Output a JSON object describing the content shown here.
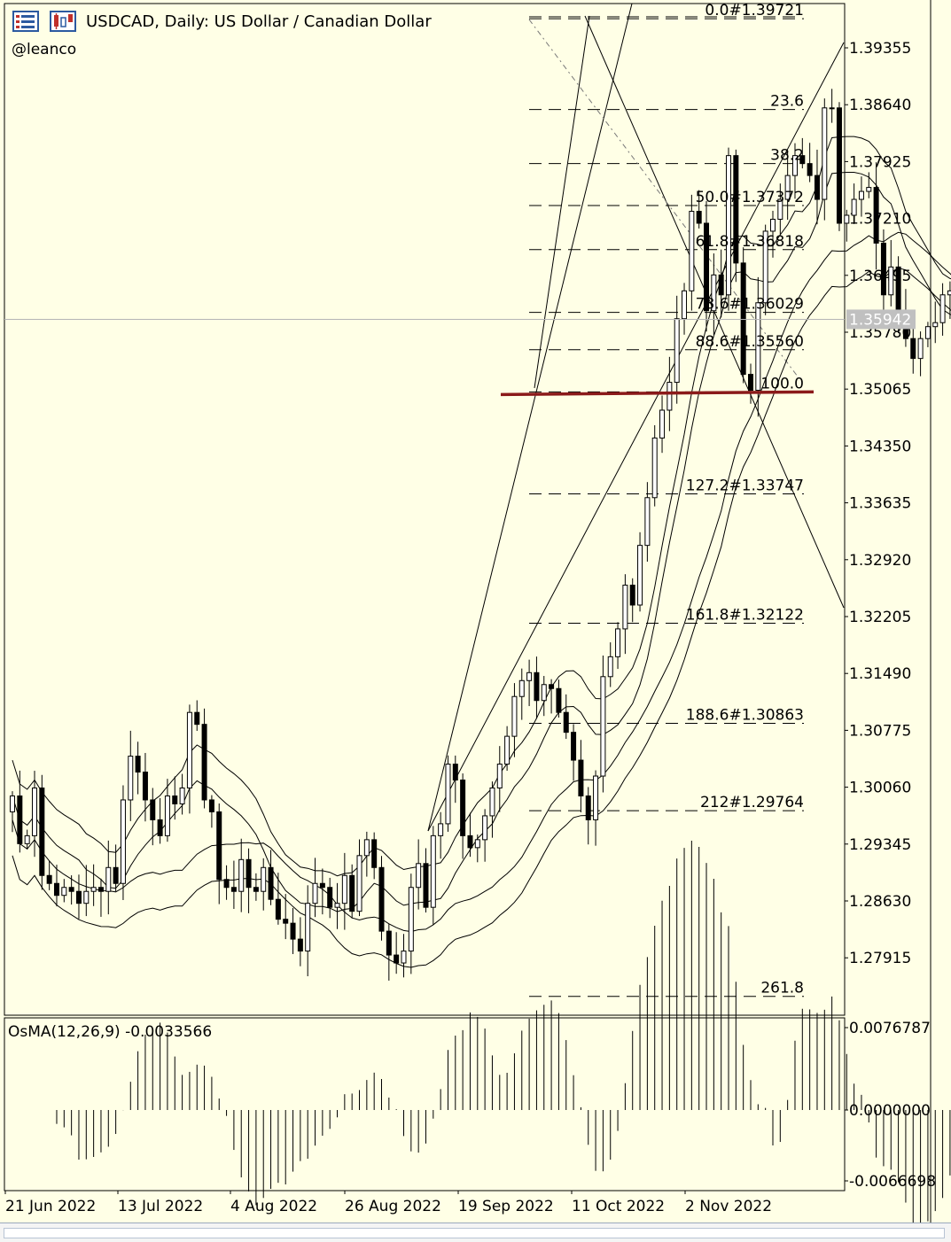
{
  "header": {
    "title": "USDCAD, Daily:  US Dollar / Canadian Dollar",
    "author": "@leanco",
    "icons": [
      "chart-bars-icon",
      "candles-icon"
    ]
  },
  "price_axis": {
    "labels": [
      "1.39355",
      "1.38640",
      "1.37925",
      "1.37210",
      "1.36495",
      "1.35780",
      "1.35065",
      "1.34350",
      "1.33635",
      "1.32920",
      "1.32205",
      "1.31490",
      "1.30775",
      "1.30060",
      "1.29345",
      "1.28630",
      "1.27915"
    ],
    "current_price": "1.35942"
  },
  "time_axis": {
    "labels": [
      "21 Jun 2022",
      "13 Jul 2022",
      "4 Aug 2022",
      "26 Aug 2022",
      "19 Sep 2022",
      "11 Oct 2022",
      "2 Nov 2022"
    ]
  },
  "fibonacci": {
    "levels": [
      {
        "label": "0.0#1.39721",
        "price": 1.39721
      },
      {
        "label": "23.6",
        "price": 1.3858
      },
      {
        "label": "38.2",
        "price": 1.379
      },
      {
        "label": "50.0#1.37372",
        "price": 1.37372
      },
      {
        "label": "61.8#1.36818",
        "price": 1.36818
      },
      {
        "label": "78.6#1.36029",
        "price": 1.36029
      },
      {
        "label": "88.6#1.35560",
        "price": 1.3556
      },
      {
        "label": "100.0",
        "price": 1.3503
      },
      {
        "label": "127.2#1.33747",
        "price": 1.33747
      },
      {
        "label": "161.8#1.32122",
        "price": 1.32122
      },
      {
        "label": "188.6#1.30863",
        "price": 1.30863
      },
      {
        "label": "212#1.29764",
        "price": 1.29764
      },
      {
        "label": "261.8",
        "price": 1.2743
      }
    ]
  },
  "osma": {
    "label": "OsMA(12,26,9) -0.0033566",
    "axis_labels": [
      "0.0076787",
      "0.0000000",
      "-0.0066698"
    ]
  },
  "colors": {
    "background": "#ffffe6",
    "support_line": "#8b1a1a",
    "price_tag": "#c0c0c0"
  },
  "chart_data": {
    "type": "candlestick",
    "symbol": "USDCAD",
    "timeframe": "Daily",
    "ylim": [
      1.2725,
      1.3985
    ],
    "x_labels": [
      "21 Jun 2022",
      "13 Jul 2022",
      "4 Aug 2022",
      "26 Aug 2022",
      "19 Sep 2022",
      "11 Oct 2022",
      "2 Nov 2022"
    ],
    "closes": [
      1.2995,
      1.2935,
      1.2945,
      1.3005,
      1.2895,
      1.2885,
      1.287,
      1.288,
      1.2875,
      1.286,
      1.2875,
      1.288,
      1.2875,
      1.2905,
      1.2885,
      1.299,
      1.3045,
      1.3025,
      1.299,
      1.2965,
      1.2945,
      1.2995,
      1.2985,
      1.3005,
      1.31,
      1.3085,
      1.299,
      1.2975,
      1.289,
      1.288,
      1.2875,
      1.2915,
      1.288,
      1.2875,
      1.2905,
      1.2865,
      1.284,
      1.2835,
      1.2815,
      1.28,
      1.286,
      1.2885,
      1.288,
      1.2855,
      1.286,
      1.2895,
      1.285,
      1.292,
      1.294,
      1.2905,
      1.2825,
      1.2795,
      1.2785,
      1.28,
      1.288,
      1.291,
      1.2855,
      1.2945,
      1.296,
      1.3035,
      1.3015,
      1.2945,
      1.293,
      1.294,
      1.297,
      1.3005,
      1.3035,
      1.307,
      1.312,
      1.314,
      1.315,
      1.3115,
      1.3135,
      1.313,
      1.31,
      1.3075,
      1.304,
      1.2995,
      1.2965,
      1.302,
      1.3145,
      1.317,
      1.3205,
      1.326,
      1.3235,
      1.331,
      1.337,
      1.3445,
      1.348,
      1.3515,
      1.3595,
      1.363,
      1.373,
      1.3715,
      1.3605,
      1.365,
      1.3625,
      1.38,
      1.3665,
      1.3525,
      1.3505,
      1.3615,
      1.3705,
      1.372,
      1.3745,
      1.3775,
      1.38,
      1.379,
      1.3775,
      1.3745,
      1.386,
      1.386,
      1.3715,
      1.3725,
      1.3745,
      1.3755,
      1.376,
      1.369,
      1.3625,
      1.366,
      1.3605,
      1.357,
      1.3545,
      1.357,
      1.3585,
      1.359,
      1.3625,
      1.363,
      1.3594
    ]
  }
}
